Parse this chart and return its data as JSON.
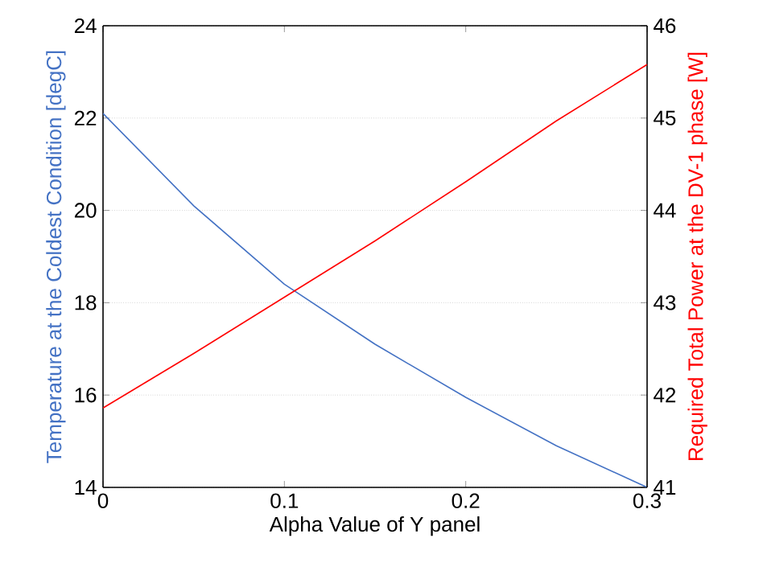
{
  "chart_data": {
    "type": "line",
    "xlabel": "Alpha Value of Y panel",
    "ylabel": "Temperature at the Coldest Condition [degC]",
    "y2label": "Required Total Power at the DV-1 phase [W]",
    "x": [
      0,
      0.05,
      0.1,
      0.15,
      0.2,
      0.25,
      0.3
    ],
    "series": [
      {
        "color": "#4472c4",
        "values": [
          22.1,
          20.1,
          18.4,
          17.1,
          15.95,
          14.9,
          14.0
        ]
      },
      {
        "color": "#ff0000",
        "axis": "y2",
        "values": [
          41.86,
          42.45,
          43.06,
          43.67,
          44.31,
          44.97,
          45.58
        ]
      }
    ],
    "xlim": [
      0,
      0.3
    ],
    "xticks": [
      0,
      0.1,
      0.2,
      0.3
    ],
    "ylim": [
      14,
      24
    ],
    "yticks": [
      14,
      16,
      18,
      20,
      22,
      24
    ],
    "y2lim": [
      41,
      46
    ],
    "y2ticks": [
      41,
      42,
      43,
      44,
      45,
      46
    ],
    "grid": "y",
    "marker": "none",
    "line_style": "solid"
  }
}
